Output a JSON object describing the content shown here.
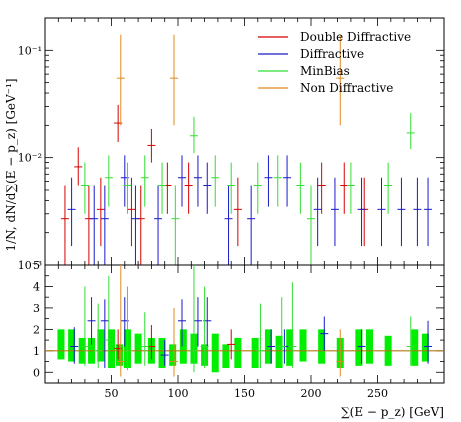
{
  "chart_data": [
    {
      "type": "scatter",
      "panel": "main",
      "xlabel": "∑(E − p_z) [GeV]",
      "ylabel": "1/N, dN/d∑(E − p_z) [GeV⁻¹]",
      "xlim": [
        0,
        300
      ],
      "ylim": [
        0.001,
        0.2
      ],
      "yscale": "log",
      "x_ticks": [
        50,
        100,
        150,
        200,
        250
      ],
      "y_tick_labels": [
        "10⁻³",
        "10⁻²",
        "10⁻¹"
      ],
      "legend_placement": "top-right",
      "series": [
        {
          "name": "Double Diffractive",
          "color": "#d40000",
          "points": [
            {
              "x": 15,
              "y": 0.0027,
              "lo": 0.001,
              "hi": 0.0055
            },
            {
              "x": 25,
              "y": 0.0082,
              "lo": 0.0055,
              "hi": 0.0125
            },
            {
              "x": 33,
              "y": 0.0027,
              "lo": 0.001,
              "hi": 0.0055
            },
            {
              "x": 42,
              "y": 0.0033,
              "lo": 0.0015,
              "hi": 0.0065
            },
            {
              "x": 55,
              "y": 0.021,
              "lo": 0.014,
              "hi": 0.031
            },
            {
              "x": 65,
              "y": 0.0033,
              "lo": 0.0015,
              "hi": 0.0065
            },
            {
              "x": 72,
              "y": 0.0027,
              "lo": 0.001,
              "hi": 0.0055
            },
            {
              "x": 80,
              "y": 0.013,
              "lo": 0.009,
              "hi": 0.0185
            },
            {
              "x": 92,
              "y": 0.0055,
              "lo": 0.003,
              "hi": 0.009
            },
            {
              "x": 108,
              "y": 0.0055,
              "lo": 0.003,
              "hi": 0.009
            },
            {
              "x": 145,
              "y": 0.0033,
              "lo": 0.0015,
              "hi": 0.0065
            },
            {
              "x": 208,
              "y": 0.0055,
              "lo": 0.003,
              "hi": 0.009
            },
            {
              "x": 225,
              "y": 0.0055,
              "lo": 0.003,
              "hi": 0.009
            },
            {
              "x": 240,
              "y": 0.0033,
              "lo": 0.0015,
              "hi": 0.0065
            }
          ]
        },
        {
          "name": "Diffractive",
          "color": "#1a1acc",
          "points": [
            {
              "x": 20,
              "y": 0.0033,
              "lo": 0.0015,
              "hi": 0.0065
            },
            {
              "x": 37,
              "y": 0.0027,
              "lo": 0.001,
              "hi": 0.0055
            },
            {
              "x": 45,
              "y": 0.0027,
              "lo": 0.001,
              "hi": 0.0055
            },
            {
              "x": 60,
              "y": 0.0065,
              "lo": 0.0035,
              "hi": 0.0105
            },
            {
              "x": 68,
              "y": 0.0027,
              "lo": 0.001,
              "hi": 0.0055
            },
            {
              "x": 85,
              "y": 0.0027,
              "lo": 0.001,
              "hi": 0.0055
            },
            {
              "x": 103,
              "y": 0.0065,
              "lo": 0.0035,
              "hi": 0.0105
            },
            {
              "x": 115,
              "y": 0.0065,
              "lo": 0.0035,
              "hi": 0.0105
            },
            {
              "x": 122,
              "y": 0.0055,
              "lo": 0.003,
              "hi": 0.009
            },
            {
              "x": 138,
              "y": 0.0027,
              "lo": 0.001,
              "hi": 0.0055
            },
            {
              "x": 155,
              "y": 0.0027,
              "lo": 0.001,
              "hi": 0.0055
            },
            {
              "x": 168,
              "y": 0.0065,
              "lo": 0.0035,
              "hi": 0.0105
            },
            {
              "x": 182,
              "y": 0.0065,
              "lo": 0.0035,
              "hi": 0.0105
            },
            {
              "x": 205,
              "y": 0.0033,
              "lo": 0.0015,
              "hi": 0.0065
            },
            {
              "x": 218,
              "y": 0.0033,
              "lo": 0.0015,
              "hi": 0.0065
            },
            {
              "x": 238,
              "y": 0.0033,
              "lo": 0.0015,
              "hi": 0.0065
            },
            {
              "x": 253,
              "y": 0.0033,
              "lo": 0.0015,
              "hi": 0.0065
            },
            {
              "x": 268,
              "y": 0.0033,
              "lo": 0.0015,
              "hi": 0.0065
            },
            {
              "x": 280,
              "y": 0.0033,
              "lo": 0.0015,
              "hi": 0.0065
            },
            {
              "x": 288,
              "y": 0.0033,
              "lo": 0.0015,
              "hi": 0.0065
            }
          ]
        },
        {
          "name": "MinBias",
          "color": "#33dd33",
          "points": [
            {
              "x": 30,
              "y": 0.0055,
              "lo": 0.003,
              "hi": 0.009
            },
            {
              "x": 48,
              "y": 0.0065,
              "lo": 0.0035,
              "hi": 0.0105
            },
            {
              "x": 62,
              "y": 0.0055,
              "lo": 0.003,
              "hi": 0.009
            },
            {
              "x": 75,
              "y": 0.0065,
              "lo": 0.0035,
              "hi": 0.0105
            },
            {
              "x": 88,
              "y": 0.0055,
              "lo": 0.003,
              "hi": 0.009
            },
            {
              "x": 98,
              "y": 0.0027,
              "lo": 0.001,
              "hi": 0.0055
            },
            {
              "x": 112,
              "y": 0.016,
              "lo": 0.011,
              "hi": 0.024
            },
            {
              "x": 128,
              "y": 0.0065,
              "lo": 0.0035,
              "hi": 0.0105
            },
            {
              "x": 140,
              "y": 0.0055,
              "lo": 0.003,
              "hi": 0.009
            },
            {
              "x": 160,
              "y": 0.0055,
              "lo": 0.003,
              "hi": 0.009
            },
            {
              "x": 175,
              "y": 0.0065,
              "lo": 0.0035,
              "hi": 0.0105
            },
            {
              "x": 192,
              "y": 0.0055,
              "lo": 0.003,
              "hi": 0.009
            },
            {
              "x": 200,
              "y": 0.0027,
              "lo": 0.001,
              "hi": 0.0055
            },
            {
              "x": 230,
              "y": 0.0055,
              "lo": 0.003,
              "hi": 0.009
            },
            {
              "x": 258,
              "y": 0.0055,
              "lo": 0.003,
              "hi": 0.009
            },
            {
              "x": 275,
              "y": 0.017,
              "lo": 0.012,
              "hi": 0.026
            }
          ]
        },
        {
          "name": "Non Diffractive",
          "color": "#e08a1e",
          "points": [
            {
              "x": 57,
              "y": 0.055,
              "lo": 0.02,
              "hi": 0.14
            },
            {
              "x": 97,
              "y": 0.055,
              "lo": 0.02,
              "hi": 0.14
            },
            {
              "x": 222,
              "y": 0.055,
              "lo": 0.02,
              "hi": 0.14
            }
          ]
        }
      ]
    },
    {
      "type": "scatter",
      "panel": "ratio",
      "xlabel": "∑(E − p_z) [GeV]",
      "xlim": [
        0,
        300
      ],
      "ylim": [
        -0.5,
        5
      ],
      "y_ticks": [
        0,
        1,
        2,
        3,
        4,
        5
      ],
      "reference_line": 1,
      "reference_color": "#b07a10",
      "band_color": "#00ee00",
      "band": [
        {
          "x": 12,
          "lo": 0.6,
          "hi": 2.0
        },
        {
          "x": 20,
          "lo": 0.5,
          "hi": 2.0
        },
        {
          "x": 28,
          "lo": 0.4,
          "hi": 1.6
        },
        {
          "x": 35,
          "lo": 0.4,
          "hi": 1.6
        },
        {
          "x": 42,
          "lo": 0.5,
          "hi": 2.0
        },
        {
          "x": 50,
          "lo": 0.2,
          "hi": 2.0
        },
        {
          "x": 56,
          "lo": 0.3,
          "hi": 1.3
        },
        {
          "x": 62,
          "lo": 0.2,
          "hi": 2.0
        },
        {
          "x": 70,
          "lo": 0.4,
          "hi": 1.8
        },
        {
          "x": 80,
          "lo": 0.4,
          "hi": 1.6
        },
        {
          "x": 88,
          "lo": 0.2,
          "hi": 1.6
        },
        {
          "x": 96,
          "lo": 0.3,
          "hi": 1.3
        },
        {
          "x": 104,
          "lo": 0.4,
          "hi": 2.0
        },
        {
          "x": 112,
          "lo": 0.4,
          "hi": 1.8
        },
        {
          "x": 120,
          "lo": 0.3,
          "hi": 1.3
        },
        {
          "x": 128,
          "lo": 0.0,
          "hi": 1.8
        },
        {
          "x": 136,
          "lo": 0.2,
          "hi": 1.3
        },
        {
          "x": 145,
          "lo": 0.2,
          "hi": 1.6
        },
        {
          "x": 158,
          "lo": 0.2,
          "hi": 1.6
        },
        {
          "x": 168,
          "lo": 0.4,
          "hi": 2.0
        },
        {
          "x": 176,
          "lo": 0.2,
          "hi": 1.7
        },
        {
          "x": 184,
          "lo": 0.3,
          "hi": 2.0
        },
        {
          "x": 194,
          "lo": 0.5,
          "hi": 2.0
        },
        {
          "x": 208,
          "lo": 0.4,
          "hi": 2.0
        },
        {
          "x": 222,
          "lo": 0.2,
          "hi": 1.6
        },
        {
          "x": 236,
          "lo": 0.3,
          "hi": 2.0
        },
        {
          "x": 244,
          "lo": 0.4,
          "hi": 2.0
        },
        {
          "x": 258,
          "lo": 0.3,
          "hi": 1.7
        },
        {
          "x": 278,
          "lo": 0.3,
          "hi": 2.0
        },
        {
          "x": 286,
          "lo": 0.5,
          "hi": 1.8
        }
      ],
      "series": [
        {
          "name": "Double Diffractive",
          "color": "#d40000",
          "points": [
            {
              "x": 55,
              "y": 1.1,
              "lo": 0.6,
              "hi": 2.0
            },
            {
              "x": 80,
              "y": 1.2,
              "lo": 0.6,
              "hi": 2.2
            },
            {
              "x": 140,
              "y": 1.3,
              "lo": 0.6,
              "hi": 2.0
            }
          ]
        },
        {
          "name": "Diffractive",
          "color": "#1a1acc",
          "points": [
            {
              "x": 22,
              "y": 1.2,
              "lo": 0.4,
              "hi": 2.1
            },
            {
              "x": 35,
              "y": 2.4,
              "lo": 1.3,
              "hi": 3.5
            },
            {
              "x": 45,
              "y": 2.4,
              "lo": 0.2,
              "hi": 3.4
            },
            {
              "x": 60,
              "y": 2.4,
              "lo": 1.2,
              "hi": 3.5
            },
            {
              "x": 90,
              "y": 0.8,
              "lo": 0.3,
              "hi": 1.5
            },
            {
              "x": 103,
              "y": 2.4,
              "lo": 1.2,
              "hi": 3.4
            },
            {
              "x": 115,
              "y": 2.4,
              "lo": 1.2,
              "hi": 3.5
            },
            {
              "x": 122,
              "y": 2.4,
              "lo": 1.2,
              "hi": 3.5
            },
            {
              "x": 170,
              "y": 1.2,
              "lo": 0.4,
              "hi": 2.0
            },
            {
              "x": 180,
              "y": 1.2,
              "lo": 0.4,
              "hi": 2.0
            },
            {
              "x": 210,
              "y": 1.8,
              "lo": 1.0,
              "hi": 2.6
            },
            {
              "x": 238,
              "y": 1.2,
              "lo": 0.4,
              "hi": 2.0
            },
            {
              "x": 288,
              "y": 1.2,
              "lo": 0.4,
              "hi": 2.4
            }
          ]
        },
        {
          "name": "MinBias",
          "color": "#33dd33",
          "points": [
            {
              "x": 30,
              "y": 1.2,
              "lo": 0.3,
              "hi": 4.0
            },
            {
              "x": 40,
              "y": 1.0,
              "lo": 0.2,
              "hi": 3.2
            },
            {
              "x": 48,
              "y": 1.5,
              "lo": 0.2,
              "hi": 4.5
            },
            {
              "x": 62,
              "y": 1.0,
              "lo": 0.1,
              "hi": 4.0
            },
            {
              "x": 75,
              "y": 1.2,
              "lo": 0.3,
              "hi": 2.8
            },
            {
              "x": 112,
              "y": 1.0,
              "lo": 0.0,
              "hi": 5.0
            },
            {
              "x": 120,
              "y": 1.2,
              "lo": 0.2,
              "hi": 4.0
            },
            {
              "x": 162,
              "y": 1.0,
              "lo": 0.2,
              "hi": 3.2
            },
            {
              "x": 178,
              "y": 1.2,
              "lo": 0.3,
              "hi": 3.5
            },
            {
              "x": 186,
              "y": 1.2,
              "lo": 0.2,
              "hi": 4.2
            },
            {
              "x": 275,
              "y": 1.2,
              "lo": 0.3,
              "hi": 2.6
            }
          ]
        },
        {
          "name": "Non Diffractive",
          "color": "#e08a1e",
          "points": [
            {
              "x": 57,
              "y": 0.5,
              "lo": -0.2,
              "hi": 5.0
            },
            {
              "x": 97,
              "y": 0.5,
              "lo": -0.2,
              "hi": 3.0
            },
            {
              "x": 222,
              "y": 0.5,
              "lo": -0.2,
              "hi": 2.0
            }
          ]
        }
      ]
    }
  ]
}
